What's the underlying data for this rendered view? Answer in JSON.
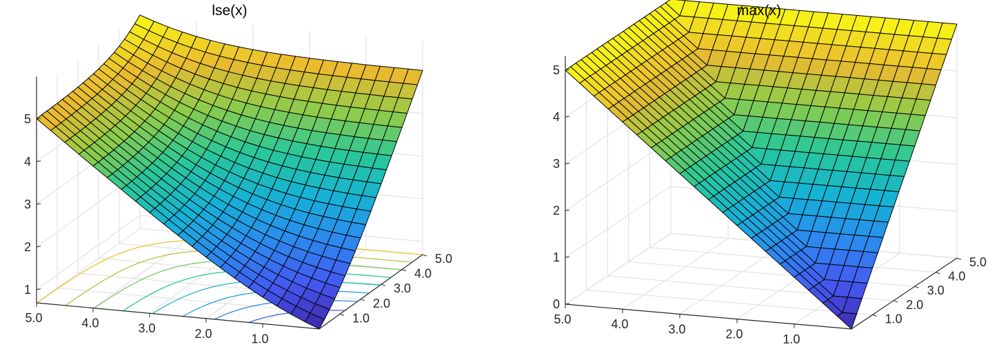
{
  "chart_data": [
    {
      "type": "surface",
      "title": "lse(x)",
      "function": "lse",
      "x_range": [
        0,
        5
      ],
      "y_range": [
        0,
        5
      ],
      "grid_size": 21,
      "z_ticks": [
        "1",
        "2",
        "3",
        "4",
        "5"
      ],
      "z_tick_values": [
        1,
        2,
        3,
        4,
        5
      ],
      "z_range": [
        0.69,
        5.69
      ],
      "x_ticks": [
        "5.0",
        "4.0",
        "3.0",
        "2.0",
        "1.0"
      ],
      "y_ticks": [
        "1.0",
        "2.0",
        "3.0",
        "4.0",
        "5.0"
      ],
      "contour_levels": [
        1.5,
        2,
        2.5,
        3,
        3.5,
        4,
        4.5,
        5
      ],
      "colormap": "parula",
      "grid": true
    },
    {
      "type": "surface",
      "title": "max(x)",
      "function": "max",
      "x_range": [
        0,
        5
      ],
      "y_range": [
        0,
        5
      ],
      "grid_size": 21,
      "z_ticks": [
        "0",
        "1",
        "2",
        "3",
        "4",
        "5"
      ],
      "z_tick_values": [
        0,
        1,
        2,
        3,
        4,
        5
      ],
      "z_range": [
        0,
        5
      ],
      "x_ticks": [
        "5.0",
        "4.0",
        "3.0",
        "2.0",
        "1.0"
      ],
      "y_ticks": [
        "1.0",
        "2.0",
        "3.0",
        "4.0",
        "5.0"
      ],
      "contour_levels": [
        0.5,
        1,
        1.5,
        2,
        2.5,
        3,
        3.5,
        4,
        4.5
      ],
      "colormap": "parula",
      "grid": true
    }
  ]
}
